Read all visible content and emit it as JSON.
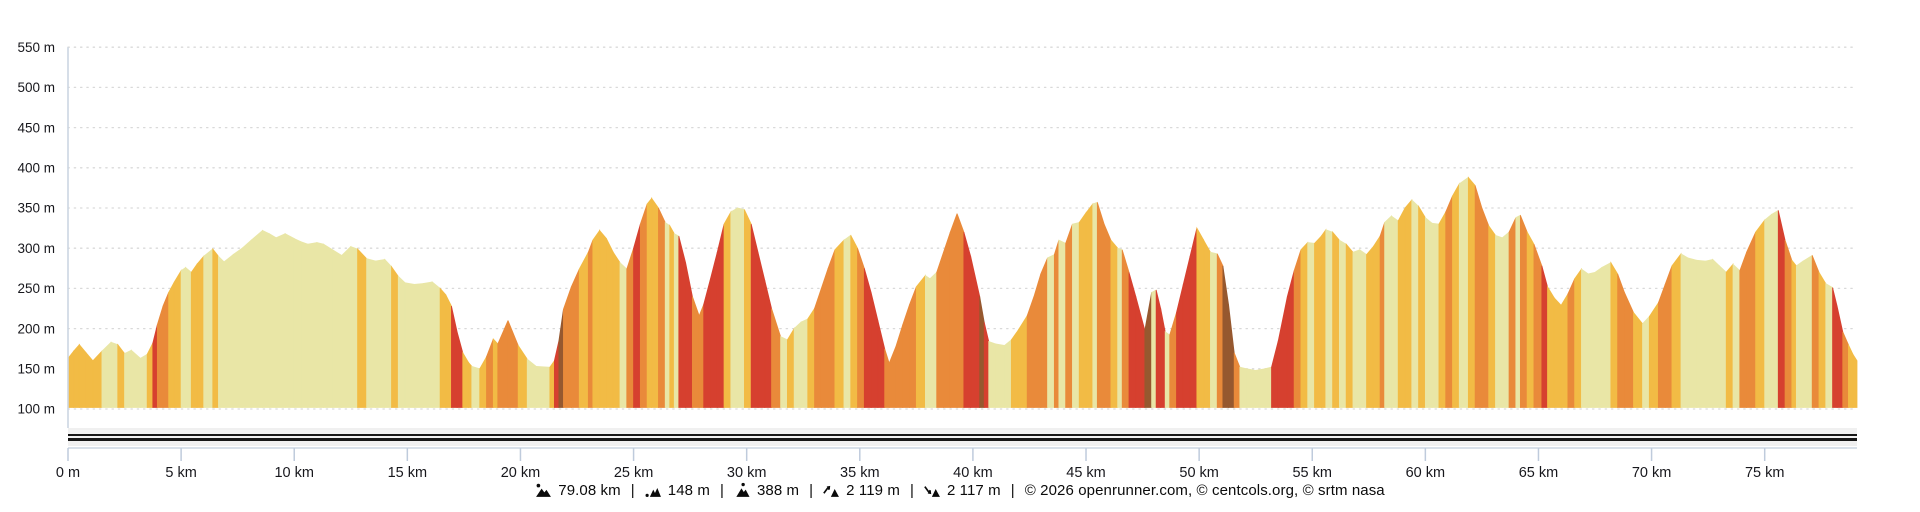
{
  "chart_data": {
    "type": "area",
    "title": "",
    "description": "Route elevation profile with vertical bands colored by slope steepness",
    "x_unit": "km",
    "y_unit": "m",
    "x_range_km": [
      0,
      79.08
    ],
    "y_range_m": [
      100,
      550
    ],
    "grid": "dotted horizontal",
    "legend": "none",
    "y_ticks": [
      {
        "m": 100,
        "label": "100 m"
      },
      {
        "m": 150,
        "label": "150 m"
      },
      {
        "m": 200,
        "label": "200 m"
      },
      {
        "m": 250,
        "label": "250 m"
      },
      {
        "m": 300,
        "label": "300 m"
      },
      {
        "m": 350,
        "label": "350 m"
      },
      {
        "m": 400,
        "label": "400 m"
      },
      {
        "m": 450,
        "label": "450 m"
      },
      {
        "m": 500,
        "label": "500 m"
      },
      {
        "m": 550,
        "label": "550 m"
      }
    ],
    "x_ticks": [
      {
        "km": 0,
        "label": "0 m"
      },
      {
        "km": 5,
        "label": "5 km"
      },
      {
        "km": 10,
        "label": "10 km"
      },
      {
        "km": 15,
        "label": "15 km"
      },
      {
        "km": 20,
        "label": "20 km"
      },
      {
        "km": 25,
        "label": "25 km"
      },
      {
        "km": 30,
        "label": "30 km"
      },
      {
        "km": 35,
        "label": "35 km"
      },
      {
        "km": 40,
        "label": "40 km"
      },
      {
        "km": 45,
        "label": "45 km"
      },
      {
        "km": 50,
        "label": "50 km"
      },
      {
        "km": 55,
        "label": "55 km"
      },
      {
        "km": 60,
        "label": "60 km"
      },
      {
        "km": 65,
        "label": "65 km"
      },
      {
        "km": 70,
        "label": "70 km"
      },
      {
        "km": 75,
        "label": "75 km"
      }
    ],
    "slope_colors": {
      "flat": "#e9e6a6",
      "mild": "#f2bb45",
      "moderate": "#e98a3a",
      "steep": "#d6402f",
      "very_steep": "#96582f"
    },
    "slope_thresholds_pct": [
      3,
      6,
      9.5,
      15
    ],
    "axis_color": "#ccd6e2",
    "tick_color": "#bfcbdc",
    "gridline_color": "#d9d9d9",
    "profile_km_m": [
      [
        0,
        163
      ],
      [
        0.25,
        172
      ],
      [
        0.5,
        180
      ],
      [
        0.8,
        170
      ],
      [
        1.1,
        160
      ],
      [
        1.5,
        172
      ],
      [
        1.9,
        183
      ],
      [
        2.2,
        180
      ],
      [
        2.5,
        169
      ],
      [
        2.8,
        173
      ],
      [
        3.2,
        163
      ],
      [
        3.5,
        168
      ],
      [
        3.75,
        182
      ],
      [
        3.95,
        205
      ],
      [
        4.2,
        228
      ],
      [
        4.45,
        245
      ],
      [
        4.7,
        258
      ],
      [
        5,
        272
      ],
      [
        5.2,
        276
      ],
      [
        5.45,
        270
      ],
      [
        5.7,
        280
      ],
      [
        6,
        290
      ],
      [
        6.4,
        299
      ],
      [
        6.65,
        290
      ],
      [
        6.9,
        283
      ],
      [
        7.3,
        292
      ],
      [
        7.7,
        300
      ],
      [
        8.1,
        310
      ],
      [
        8.6,
        322
      ],
      [
        8.9,
        318
      ],
      [
        9.2,
        313
      ],
      [
        9.6,
        318
      ],
      [
        10,
        312
      ],
      [
        10.3,
        308
      ],
      [
        10.6,
        305
      ],
      [
        11,
        307
      ],
      [
        11.3,
        305
      ],
      [
        11.7,
        298
      ],
      [
        12.1,
        291
      ],
      [
        12.5,
        302
      ],
      [
        12.8,
        299
      ],
      [
        13.2,
        287
      ],
      [
        13.6,
        284
      ],
      [
        14,
        286
      ],
      [
        14.3,
        277
      ],
      [
        14.6,
        265
      ],
      [
        14.9,
        257
      ],
      [
        15.3,
        255
      ],
      [
        15.7,
        256
      ],
      [
        16.1,
        258
      ],
      [
        16.45,
        250
      ],
      [
        16.7,
        242
      ],
      [
        16.95,
        228
      ],
      [
        17.2,
        196
      ],
      [
        17.45,
        170
      ],
      [
        17.7,
        158
      ],
      [
        17.85,
        153
      ],
      [
        18.2,
        150
      ],
      [
        18.5,
        165
      ],
      [
        18.8,
        187
      ],
      [
        19,
        181
      ],
      [
        19.45,
        210
      ],
      [
        19.9,
        179
      ],
      [
        20.3,
        162
      ],
      [
        20.7,
        153
      ],
      [
        21.3,
        152
      ],
      [
        21.5,
        160
      ],
      [
        21.7,
        185
      ],
      [
        21.9,
        224
      ],
      [
        22.25,
        252
      ],
      [
        22.6,
        274
      ],
      [
        23,
        295
      ],
      [
        23.2,
        310
      ],
      [
        23.5,
        322
      ],
      [
        23.8,
        312
      ],
      [
        24.1,
        295
      ],
      [
        24.4,
        282
      ],
      [
        24.7,
        274
      ],
      [
        25,
        300
      ],
      [
        25.3,
        330
      ],
      [
        25.6,
        355
      ],
      [
        25.8,
        362
      ],
      [
        26.1,
        350
      ],
      [
        26.4,
        332
      ],
      [
        26.6,
        328
      ],
      [
        26.8,
        318
      ],
      [
        27,
        315
      ],
      [
        27.3,
        282
      ],
      [
        27.6,
        240
      ],
      [
        27.9,
        216
      ],
      [
        28.1,
        230
      ],
      [
        28.4,
        262
      ],
      [
        28.7,
        295
      ],
      [
        29,
        330
      ],
      [
        29.3,
        345
      ],
      [
        29.6,
        350
      ],
      [
        29.9,
        348
      ],
      [
        30.2,
        330
      ],
      [
        30.5,
        295
      ],
      [
        30.8,
        260
      ],
      [
        31.1,
        225
      ],
      [
        31.5,
        190
      ],
      [
        31.8,
        186
      ],
      [
        32.1,
        200
      ],
      [
        32.4,
        208
      ],
      [
        32.7,
        212
      ],
      [
        33,
        225
      ],
      [
        33.3,
        250
      ],
      [
        33.6,
        275
      ],
      [
        33.9,
        298
      ],
      [
        34.3,
        310
      ],
      [
        34.6,
        316
      ],
      [
        34.9,
        300
      ],
      [
        35.2,
        275
      ],
      [
        35.5,
        245
      ],
      [
        35.8,
        210
      ],
      [
        36.1,
        175
      ],
      [
        36.3,
        157
      ],
      [
        36.6,
        178
      ],
      [
        36.9,
        205
      ],
      [
        37.2,
        230
      ],
      [
        37.5,
        252
      ],
      [
        37.9,
        266
      ],
      [
        38.1,
        262
      ],
      [
        38.4,
        270
      ],
      [
        38.7,
        295
      ],
      [
        39,
        320
      ],
      [
        39.3,
        343
      ],
      [
        39.6,
        320
      ],
      [
        39.9,
        290
      ],
      [
        40.3,
        240
      ],
      [
        40.5,
        208
      ],
      [
        40.7,
        184
      ],
      [
        41,
        181
      ],
      [
        41.4,
        179
      ],
      [
        41.7,
        186
      ],
      [
        42,
        198
      ],
      [
        42.4,
        216
      ],
      [
        42.7,
        240
      ],
      [
        43,
        268
      ],
      [
        43.3,
        288
      ],
      [
        43.6,
        292
      ],
      [
        43.8,
        310
      ],
      [
        44.1,
        306
      ],
      [
        44.4,
        330
      ],
      [
        44.7,
        332
      ],
      [
        45,
        344
      ],
      [
        45.3,
        355
      ],
      [
        45.5,
        357
      ],
      [
        45.8,
        330
      ],
      [
        46.1,
        310
      ],
      [
        46.4,
        300
      ],
      [
        46.6,
        298
      ],
      [
        46.9,
        270
      ],
      [
        47.2,
        240
      ],
      [
        47.6,
        198
      ],
      [
        47.9,
        245
      ],
      [
        48.1,
        248
      ],
      [
        48.3,
        225
      ],
      [
        48.5,
        196
      ],
      [
        48.7,
        192
      ],
      [
        49,
        220
      ],
      [
        49.3,
        255
      ],
      [
        49.6,
        290
      ],
      [
        49.9,
        325
      ],
      [
        50.2,
        310
      ],
      [
        50.5,
        295
      ],
      [
        50.8,
        293
      ],
      [
        51.05,
        278
      ],
      [
        51.3,
        230
      ],
      [
        51.55,
        170
      ],
      [
        51.8,
        152
      ],
      [
        52.1,
        150
      ],
      [
        52.5,
        148
      ],
      [
        52.9,
        150
      ],
      [
        53.2,
        152
      ],
      [
        53.5,
        185
      ],
      [
        53.9,
        240
      ],
      [
        54.2,
        272
      ],
      [
        54.5,
        298
      ],
      [
        54.8,
        307
      ],
      [
        55.1,
        306
      ],
      [
        55.4,
        315
      ],
      [
        55.6,
        323
      ],
      [
        55.9,
        320
      ],
      [
        56.2,
        310
      ],
      [
        56.5,
        305
      ],
      [
        56.8,
        295
      ],
      [
        57.1,
        298
      ],
      [
        57.4,
        292
      ],
      [
        57.7,
        302
      ],
      [
        58,
        315
      ],
      [
        58.2,
        332
      ],
      [
        58.5,
        340
      ],
      [
        58.8,
        334
      ],
      [
        59.1,
        350
      ],
      [
        59.4,
        360
      ],
      [
        59.7,
        352
      ],
      [
        60,
        338
      ],
      [
        60.3,
        331
      ],
      [
        60.6,
        330
      ],
      [
        60.9,
        345
      ],
      [
        61.2,
        365
      ],
      [
        61.5,
        380
      ],
      [
        61.9,
        388
      ],
      [
        62.2,
        378
      ],
      [
        62.5,
        350
      ],
      [
        62.8,
        328
      ],
      [
        63.1,
        316
      ],
      [
        63.4,
        313
      ],
      [
        63.7,
        320
      ],
      [
        64,
        338
      ],
      [
        64.2,
        341
      ],
      [
        64.5,
        320
      ],
      [
        64.8,
        305
      ],
      [
        65.15,
        278
      ],
      [
        65.4,
        252
      ],
      [
        65.7,
        238
      ],
      [
        66,
        229
      ],
      [
        66.3,
        243
      ],
      [
        66.6,
        262
      ],
      [
        66.9,
        274
      ],
      [
        67.2,
        268
      ],
      [
        67.5,
        270
      ],
      [
        67.8,
        276
      ],
      [
        68.2,
        282
      ],
      [
        68.5,
        268
      ],
      [
        68.8,
        245
      ],
      [
        69.2,
        220
      ],
      [
        69.6,
        206
      ],
      [
        69.9,
        215
      ],
      [
        70.3,
        232
      ],
      [
        70.6,
        255
      ],
      [
        70.9,
        278
      ],
      [
        71.3,
        293
      ],
      [
        71.6,
        288
      ],
      [
        72,
        285
      ],
      [
        72.4,
        284
      ],
      [
        72.7,
        286
      ],
      [
        73,
        278
      ],
      [
        73.3,
        270
      ],
      [
        73.6,
        280
      ],
      [
        73.9,
        272
      ],
      [
        74.2,
        295
      ],
      [
        74.6,
        320
      ],
      [
        75,
        335
      ],
      [
        75.3,
        342
      ],
      [
        75.6,
        347
      ],
      [
        75.9,
        310
      ],
      [
        76.2,
        285
      ],
      [
        76.4,
        278
      ],
      [
        76.7,
        284
      ],
      [
        77.1,
        291
      ],
      [
        77.4,
        270
      ],
      [
        77.7,
        256
      ],
      [
        78,
        251
      ],
      [
        78.2,
        228
      ],
      [
        78.45,
        196
      ],
      [
        78.7,
        180
      ],
      [
        78.9,
        168
      ],
      [
        79.08,
        160
      ]
    ]
  },
  "road_bar": {
    "band_color": "#f0f0f0",
    "line_color": "#161616"
  },
  "footer": {
    "separator": "|",
    "stats": [
      {
        "name": "total-distance",
        "value": "79.08 km"
      },
      {
        "name": "min-altitude",
        "value": "148 m"
      },
      {
        "name": "max-altitude",
        "value": "388 m"
      },
      {
        "name": "total-ascent",
        "value": "2 119 m"
      },
      {
        "name": "total-descent",
        "value": "2 117 m"
      }
    ],
    "copyright": "© 2026 openrunner.com, © centcols.org, © srtm nasa"
  }
}
